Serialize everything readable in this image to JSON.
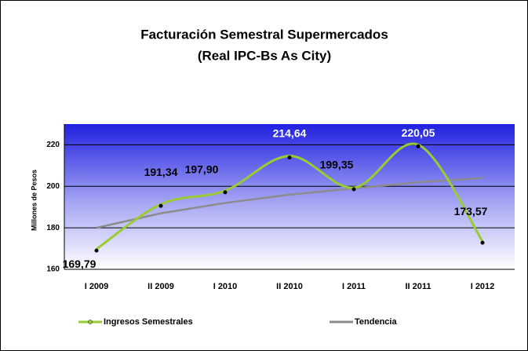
{
  "chart_data": {
    "type": "line",
    "title": "Facturación Semestral Supermercados",
    "subtitle": "(Real IPC-Bs As City)",
    "y_label": "Millones de Pesos",
    "categories": [
      "I 2009",
      "II 2009",
      "I 2010",
      "II 2010",
      "I 2011",
      "II 2011",
      "I 2012"
    ],
    "series": [
      {
        "name": "Ingresos Semestrales",
        "color": "#99cc33",
        "smooth": true,
        "markers": true,
        "values": [
          169.79,
          191.34,
          197.9,
          214.64,
          199.35,
          220.05,
          173.57
        ],
        "value_labels": [
          "169,79",
          "191,34",
          "197,90",
          "214,64",
          "199,35",
          "220,05",
          "173,57"
        ]
      },
      {
        "name": "Tendencia",
        "color": "#8c8c8c",
        "smooth": false,
        "markers": false,
        "values": [
          180,
          187,
          192,
          196,
          199,
          202,
          204
        ]
      }
    ],
    "ylim": [
      160,
      230
    ],
    "yticks": [
      160,
      180,
      200,
      220
    ],
    "grid": true,
    "legend": "bottom"
  }
}
